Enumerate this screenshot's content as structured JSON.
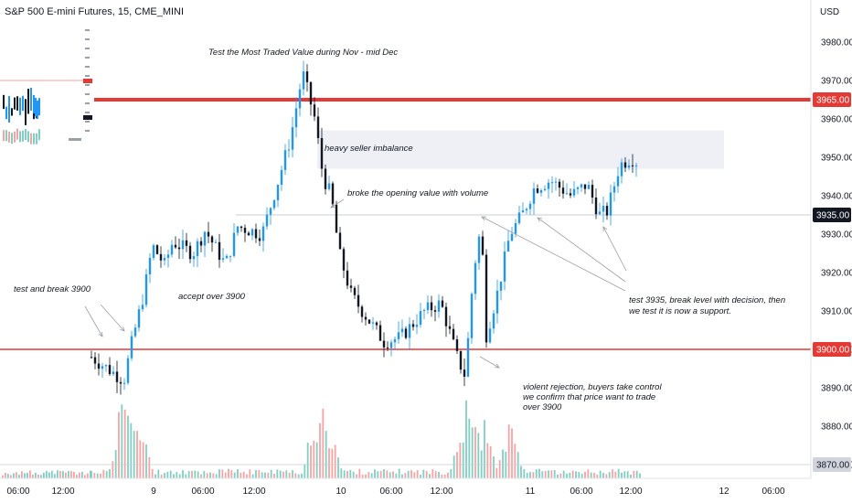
{
  "header": {
    "title": "S&P 500 E-mini Futures, 15, CME_MINI",
    "currency": "USD"
  },
  "colors": {
    "up": "#2196f3",
    "down": "#131722",
    "level": "#e53935",
    "volume_up": "#7fcfc2",
    "volume_down": "#f5a3a3",
    "zone": "#eef0f6"
  },
  "chart_data": {
    "type": "candlestick",
    "y_ticks": [
      3870,
      3880,
      3890,
      3900,
      3910,
      3920,
      3930,
      3940,
      3950,
      3960,
      3970,
      3980
    ],
    "y_range": [
      3866,
      3988
    ],
    "x_ticks": [
      "06:00",
      "12:00",
      "9",
      "06:00",
      "12:00",
      "10",
      "06:00",
      "12:00",
      "11",
      "06:00",
      "12:00",
      "12",
      "06:00"
    ],
    "levels": [
      {
        "value": 3965,
        "label": "3965.00",
        "kind": "resistance"
      },
      {
        "value": 3935,
        "label": "3935.00",
        "kind": "current"
      },
      {
        "value": 3900,
        "label": "3900.00",
        "kind": "support"
      },
      {
        "value": 3870,
        "label": "3870.00",
        "kind": "base"
      }
    ],
    "zone": {
      "top": 3957,
      "bottom": 3947
    },
    "path": [
      {
        "t": 0,
        "p": 3898
      },
      {
        "t": 4,
        "p": 3895
      },
      {
        "t": 8,
        "p": 3892
      },
      {
        "t": 10,
        "p": 3902
      },
      {
        "t": 13,
        "p": 3915
      },
      {
        "t": 15,
        "p": 3927
      },
      {
        "t": 18,
        "p": 3922
      },
      {
        "t": 20,
        "p": 3928
      },
      {
        "t": 25,
        "p": 3925
      },
      {
        "t": 28,
        "p": 3931
      },
      {
        "t": 33,
        "p": 3922
      },
      {
        "t": 36,
        "p": 3932
      },
      {
        "t": 42,
        "p": 3930
      },
      {
        "t": 46,
        "p": 3944
      },
      {
        "t": 49,
        "p": 3955
      },
      {
        "t": 52,
        "p": 3972
      },
      {
        "t": 55,
        "p": 3960
      },
      {
        "t": 57,
        "p": 3945
      },
      {
        "t": 59,
        "p": 3940
      },
      {
        "t": 61,
        "p": 3925
      },
      {
        "t": 64,
        "p": 3914
      },
      {
        "t": 68,
        "p": 3908
      },
      {
        "t": 72,
        "p": 3902
      },
      {
        "t": 76,
        "p": 3903
      },
      {
        "t": 82,
        "p": 3910
      },
      {
        "t": 86,
        "p": 3912
      },
      {
        "t": 90,
        "p": 3898
      },
      {
        "t": 92,
        "p": 3893
      },
      {
        "t": 94,
        "p": 3920
      },
      {
        "t": 96,
        "p": 3933
      },
      {
        "t": 97,
        "p": 3903
      },
      {
        "t": 100,
        "p": 3915
      },
      {
        "t": 103,
        "p": 3930
      },
      {
        "t": 106,
        "p": 3935
      },
      {
        "t": 109,
        "p": 3942
      },
      {
        "t": 113,
        "p": 3944
      },
      {
        "t": 118,
        "p": 3940
      },
      {
        "t": 122,
        "p": 3943
      },
      {
        "t": 125,
        "p": 3935
      },
      {
        "t": 127,
        "p": 3936
      },
      {
        "t": 130,
        "p": 3948
      },
      {
        "t": 133,
        "p": 3950
      },
      {
        "t": 135,
        "p": 3948
      }
    ],
    "volume_spikes": [
      {
        "t": 8,
        "v": 1.0
      },
      {
        "t": 10,
        "v": 0.8
      },
      {
        "t": 12,
        "v": 0.6
      },
      {
        "t": 55,
        "v": 0.75
      },
      {
        "t": 57,
        "v": 0.6
      },
      {
        "t": 59,
        "v": 0.5
      },
      {
        "t": 91,
        "v": 0.45
      },
      {
        "t": 93,
        "v": 0.9
      },
      {
        "t": 95,
        "v": 0.7
      },
      {
        "t": 97,
        "v": 0.55
      },
      {
        "t": 103,
        "v": 0.55
      }
    ]
  },
  "annotations": [
    {
      "text": "Test the Most Traded Value during Nov - mid Dec"
    },
    {
      "text": "heavy seller imbalance"
    },
    {
      "text": "broke the opening value with volume"
    },
    {
      "text": "test and break 3900"
    },
    {
      "text": "accept over 3900"
    },
    {
      "text": "test 3935, break level with decision, then"
    },
    {
      "text": "we test it is now a support."
    },
    {
      "text": "violent rejection, buyers take control"
    },
    {
      "text": "we confirm that price want to trade"
    },
    {
      "text": "over 3900"
    }
  ]
}
